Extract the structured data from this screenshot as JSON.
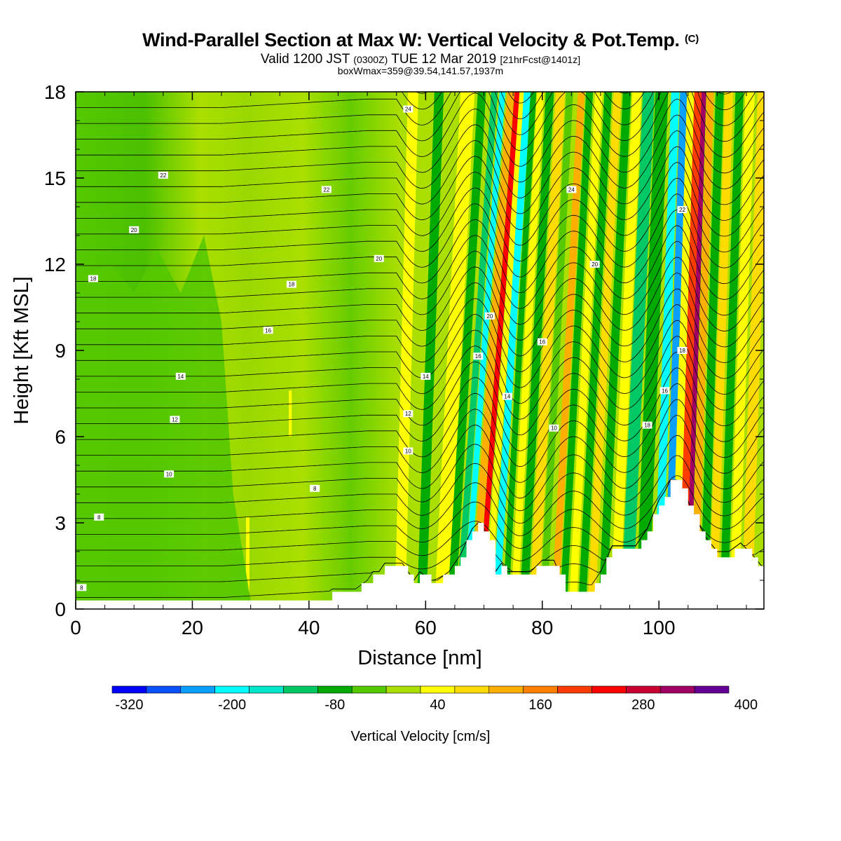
{
  "header": {
    "title": "Wind-Parallel Section at Max W: Vertical Velocity & Pot.Temp.",
    "title_mark": "(C)",
    "valid_prefix": "Valid 1200 JST",
    "valid_utc": "(0300Z)",
    "valid_date": "TUE 12 Mar 2019",
    "forecast": "[21hrFcst@1401z]",
    "box_info": "boxWmax=359@39.54,141.57,1937m"
  },
  "chart_data": {
    "type": "heatmap",
    "xlabel": "Distance [nm]",
    "ylabel": "Height [Kft MSL]",
    "xlim": [
      0,
      118
    ],
    "ylim": [
      0,
      18
    ],
    "xticks": [
      "0",
      "20",
      "40",
      "60",
      "80",
      "100"
    ],
    "yticks": [
      "0",
      "3",
      "6",
      "9",
      "12",
      "15",
      "18"
    ],
    "colorbar": {
      "label": "Vertical Velocity [cm/s]",
      "tick_labels": [
        "-320",
        "-200",
        "-80",
        "40",
        "160",
        "280",
        "400"
      ],
      "tick_values": [
        -320,
        -200,
        -80,
        40,
        160,
        280,
        400
      ],
      "colors": [
        "#0000ff",
        "#0a50ff",
        "#0aa0ff",
        "#00ffff",
        "#00e6c8",
        "#00c864",
        "#00aa00",
        "#55c800",
        "#aadf00",
        "#ffff00",
        "#ffdc00",
        "#ffaf00",
        "#ff8000",
        "#ff3c00",
        "#ff0000",
        "#c80032",
        "#a00064",
        "#640096"
      ]
    },
    "terrain_kft": [
      [
        0,
        0.3
      ],
      [
        43,
        0.3
      ],
      [
        44,
        0.6
      ],
      [
        48,
        0.6
      ],
      [
        50,
        0.9
      ],
      [
        51,
        1.2
      ],
      [
        52,
        1.2
      ],
      [
        53,
        1.5
      ],
      [
        56,
        1.5
      ],
      [
        58,
        0.9
      ],
      [
        59,
        1.2
      ],
      [
        61,
        0.9
      ],
      [
        62,
        0.9
      ],
      [
        64,
        1.2
      ],
      [
        66,
        1.8
      ],
      [
        68,
        2.7
      ],
      [
        69,
        2.9
      ],
      [
        70,
        2.7
      ],
      [
        71,
        2.3
      ],
      [
        72,
        1.2
      ],
      [
        73,
        1.5
      ],
      [
        74,
        1.2
      ],
      [
        78,
        1.2
      ],
      [
        80,
        1.6
      ],
      [
        82,
        1.6
      ],
      [
        84,
        0.6
      ],
      [
        88,
        0.6
      ],
      [
        90,
        1.2
      ],
      [
        92,
        2.1
      ],
      [
        96,
        2.1
      ],
      [
        98,
        2.7
      ],
      [
        100,
        3.7
      ],
      [
        101,
        4.0
      ],
      [
        102,
        4.4
      ],
      [
        103,
        4.4
      ],
      [
        104,
        4.1
      ],
      [
        106,
        3.2
      ],
      [
        108,
        2.4
      ],
      [
        110,
        1.9
      ],
      [
        112,
        1.9
      ],
      [
        114,
        2.2
      ],
      [
        116,
        1.8
      ],
      [
        118,
        1.3
      ]
    ],
    "vertical_velocity_features": [
      {
        "x": 71.5,
        "max": 300,
        "min": -200
      },
      {
        "x": 104.8,
        "max": 359,
        "min": -220
      }
    ],
    "theta_contour_labels": [
      "8",
      "10",
      "12",
      "14",
      "16",
      "18",
      "20",
      "22",
      "24"
    ]
  }
}
